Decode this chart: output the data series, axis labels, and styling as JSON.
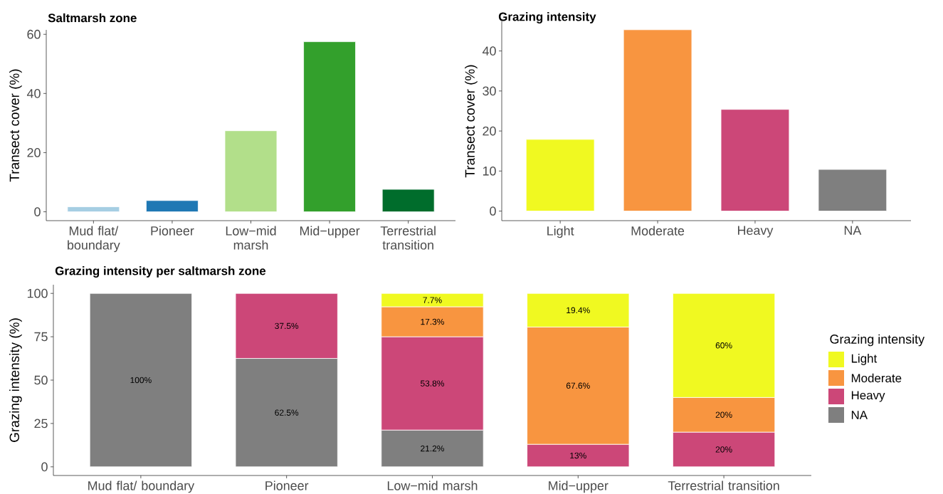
{
  "chart_data": [
    {
      "type": "bar",
      "title": "Saltmarsh zone",
      "ylabel": "Transect cover (%)",
      "categories": [
        "Mud flat/ boundary",
        "Pioneer",
        "Low−mid marsh",
        "Mid−upper",
        "Terrestrial transition"
      ],
      "values": [
        1.7,
        3.8,
        27.4,
        57.5,
        7.6
      ],
      "colors": [
        "#a6cee3",
        "#1f78b4",
        "#b2df8a",
        "#33a02c",
        "#006d2c"
      ],
      "ylim": [
        -3,
        61.5
      ],
      "yticks": [
        0,
        20,
        40,
        60
      ],
      "grid": false,
      "legend": false
    },
    {
      "type": "bar",
      "title": "Grazing intensity",
      "ylabel": "Transect cover (%)",
      "categories": [
        "Light",
        "Moderate",
        "Heavy",
        "NA"
      ],
      "values": [
        17.9,
        45.3,
        25.4,
        10.4
      ],
      "colors": [
        "#f0f921",
        "#f89540",
        "#cc4778",
        "#7f7f7f"
      ],
      "ylim": [
        -2.4,
        47.4
      ],
      "yticks": [
        0,
        10,
        20,
        30,
        40
      ],
      "grid": false,
      "legend": false
    },
    {
      "type": "bar",
      "title": "Grazing intensity per saltmarsh zone",
      "ylabel": "Grazing intensity (%)",
      "legend_title": "Grazing intensity",
      "stacked": true,
      "legend": "right",
      "grid": false,
      "categories": [
        "Mud flat/ boundary",
        "Pioneer",
        "Low−mid marsh",
        "Mid−upper",
        "Terrestrial transition"
      ],
      "ylim": [
        -5,
        105
      ],
      "yticks": [
        0,
        25,
        50,
        75,
        100
      ],
      "series": [
        {
          "name": "NA",
          "color": "#7f7f7f",
          "values": [
            100,
            62.5,
            21.2,
            0,
            0
          ],
          "value_labels": [
            "100%",
            "62.5%",
            "21.2%",
            null,
            null
          ]
        },
        {
          "name": "Heavy",
          "color": "#cc4778",
          "values": [
            0,
            37.5,
            53.8,
            13,
            20
          ],
          "value_labels": [
            null,
            "37.5%",
            "53.8%",
            "13%",
            "20%"
          ]
        },
        {
          "name": "Moderate",
          "color": "#f89540",
          "values": [
            0,
            0,
            17.3,
            67.6,
            20
          ],
          "value_labels": [
            null,
            null,
            "17.3%",
            "67.6%",
            "20%"
          ]
        },
        {
          "name": "Light",
          "color": "#f0f921",
          "values": [
            0,
            0,
            7.7,
            19.4,
            60
          ],
          "value_labels": [
            null,
            null,
            "7.7%",
            "19.4%",
            "60%"
          ]
        }
      ]
    }
  ]
}
